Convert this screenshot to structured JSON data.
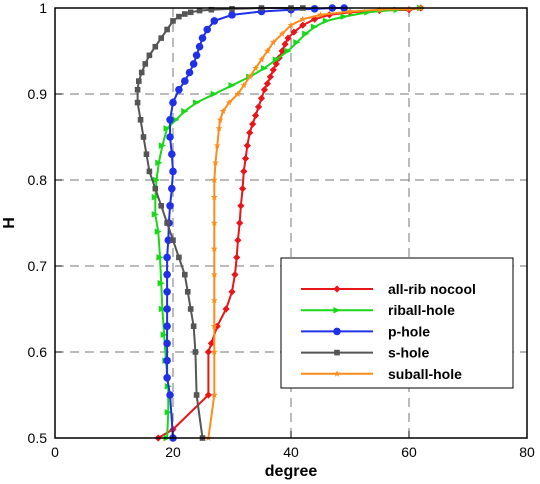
{
  "chart_data": {
    "type": "line",
    "xlabel": "degree",
    "ylabel": "H",
    "xlim": [
      0,
      80
    ],
    "ylim": [
      0.5,
      1
    ],
    "xticks": [
      0,
      20,
      40,
      60,
      80
    ],
    "yticks": [
      0.5,
      0.6,
      0.7,
      0.8,
      0.9,
      1
    ],
    "ytick_labels": [
      "0.5",
      "0.6",
      "0.7",
      "0.8",
      "0.9",
      "1"
    ],
    "grid": true,
    "legend_position": "right",
    "series": [
      {
        "name": "all-rib nocool",
        "color": "#e8161a",
        "marker": "diamond",
        "x": [
          17.5,
          20.0,
          26.0,
          26.0,
          26.5,
          27.5,
          29.0,
          30.0,
          30.5,
          30.8,
          31.0,
          31.3,
          31.5,
          31.8,
          32.0,
          32.3,
          32.6,
          33.0,
          33.5,
          34.0,
          34.5,
          35.0,
          35.5,
          36.0,
          36.5,
          37.0,
          37.5,
          38.0,
          38.5,
          39.0,
          39.5,
          40.5,
          42.0,
          44.0,
          46.5,
          50.0,
          55.0,
          60.0,
          62.0
        ],
        "y": [
          0.5,
          0.51,
          0.55,
          0.6,
          0.61,
          0.63,
          0.65,
          0.67,
          0.69,
          0.71,
          0.73,
          0.75,
          0.77,
          0.79,
          0.81,
          0.825,
          0.84,
          0.855,
          0.865,
          0.875,
          0.885,
          0.895,
          0.905,
          0.912,
          0.92,
          0.928,
          0.935,
          0.942,
          0.95,
          0.958,
          0.965,
          0.972,
          0.98,
          0.987,
          0.992,
          0.995,
          0.997,
          0.998,
          1.0
        ]
      },
      {
        "name": "riball-hole",
        "color": "#19d819",
        "marker": "triangle",
        "x": [
          19.0,
          19.2,
          19.2,
          18.8,
          18.5,
          18.2,
          18.0,
          17.8,
          17.5,
          17.0,
          17.0,
          17.2,
          17.6,
          18.2,
          19.0,
          20.5,
          22.0,
          24.0,
          27.0,
          30.0,
          33.0,
          35.5,
          37.5,
          39.5,
          41.0,
          42.5,
          44.0,
          46.0,
          49.0,
          53.0,
          58.0,
          62.0
        ],
        "y": [
          0.5,
          0.53,
          0.56,
          0.59,
          0.62,
          0.65,
          0.68,
          0.71,
          0.74,
          0.76,
          0.78,
          0.8,
          0.82,
          0.84,
          0.86,
          0.87,
          0.88,
          0.89,
          0.9,
          0.91,
          0.92,
          0.93,
          0.94,
          0.95,
          0.96,
          0.97,
          0.978,
          0.985,
          0.99,
          0.995,
          0.998,
          1.0
        ]
      },
      {
        "name": "p-hole",
        "color": "#1f30e8",
        "marker": "circle",
        "x": [
          20.0,
          19.5,
          19.0,
          19.0,
          19.0,
          19.0,
          19.0,
          19.0,
          19.0,
          19.0,
          19.2,
          19.3,
          19.5,
          19.8,
          20.0,
          19.8,
          19.5,
          19.5,
          20.0,
          21.0,
          22.0,
          22.8,
          23.5,
          24.0,
          24.5,
          25.0,
          25.8,
          27.0,
          30.0,
          35.0,
          40.0,
          44.0,
          47.0,
          49.0
        ],
        "y": [
          0.5,
          0.55,
          0.57,
          0.59,
          0.61,
          0.63,
          0.65,
          0.67,
          0.69,
          0.71,
          0.73,
          0.75,
          0.77,
          0.79,
          0.81,
          0.83,
          0.85,
          0.87,
          0.89,
          0.905,
          0.915,
          0.925,
          0.935,
          0.945,
          0.955,
          0.965,
          0.975,
          0.985,
          0.992,
          0.996,
          0.998,
          0.999,
          1.0,
          1.0
        ]
      },
      {
        "name": "s-hole",
        "color": "#555555",
        "marker": "square",
        "x": [
          25.0,
          24.0,
          23.8,
          23.5,
          23.0,
          22.5,
          22.0,
          21.0,
          20.0,
          19.0,
          18.0,
          17.0,
          16.0,
          15.5,
          15.0,
          14.5,
          14.0,
          14.0,
          14.2,
          14.7,
          15.3,
          16.0,
          17.0,
          18.0,
          19.0,
          20.0,
          21.0,
          22.0,
          23.0,
          24.5,
          26.5,
          30.0,
          35.0,
          40.0,
          42.0
        ],
        "y": [
          0.5,
          0.55,
          0.6,
          0.63,
          0.65,
          0.67,
          0.69,
          0.71,
          0.73,
          0.75,
          0.77,
          0.79,
          0.81,
          0.83,
          0.85,
          0.87,
          0.89,
          0.905,
          0.915,
          0.925,
          0.935,
          0.945,
          0.955,
          0.965,
          0.975,
          0.985,
          0.99,
          0.993,
          0.995,
          0.997,
          0.998,
          0.999,
          1.0,
          1.0,
          1.0
        ]
      },
      {
        "name": "suball-hole",
        "color": "#ff8c1a",
        "marker": "star",
        "x": [
          26.0,
          27.0,
          27.0,
          27.0,
          27.0,
          27.0,
          27.0,
          27.0,
          27.0,
          27.0,
          27.2,
          27.5,
          27.8,
          28.0,
          28.5,
          29.5,
          31.0,
          32.0,
          33.0,
          34.0,
          35.0,
          36.0,
          37.0,
          38.5,
          40.0,
          42.0,
          45.0,
          50.0,
          55.0,
          60.0,
          62.0
        ],
        "y": [
          0.5,
          0.55,
          0.6,
          0.63,
          0.66,
          0.69,
          0.72,
          0.75,
          0.78,
          0.8,
          0.82,
          0.84,
          0.86,
          0.87,
          0.88,
          0.89,
          0.9,
          0.91,
          0.92,
          0.93,
          0.94,
          0.95,
          0.96,
          0.97,
          0.98,
          0.987,
          0.992,
          0.996,
          0.998,
          0.999,
          1.0
        ]
      }
    ]
  }
}
